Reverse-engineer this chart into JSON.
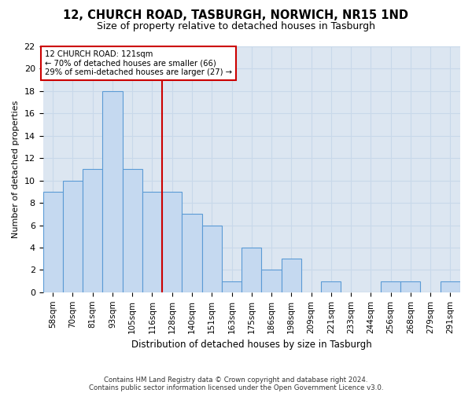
{
  "title1": "12, CHURCH ROAD, TASBURGH, NORWICH, NR15 1ND",
  "title2": "Size of property relative to detached houses in Tasburgh",
  "xlabel": "Distribution of detached houses by size in Tasburgh",
  "ylabel": "Number of detached properties",
  "footnote1": "Contains HM Land Registry data © Crown copyright and database right 2024.",
  "footnote2": "Contains public sector information licensed under the Open Government Licence v3.0.",
  "categories": [
    "58sqm",
    "70sqm",
    "81sqm",
    "93sqm",
    "105sqm",
    "116sqm",
    "128sqm",
    "140sqm",
    "151sqm",
    "163sqm",
    "175sqm",
    "186sqm",
    "198sqm",
    "209sqm",
    "221sqm",
    "233sqm",
    "244sqm",
    "256sqm",
    "268sqm",
    "279sqm",
    "291sqm"
  ],
  "values": [
    9,
    10,
    11,
    18,
    11,
    9,
    9,
    7,
    6,
    1,
    4,
    2,
    3,
    0,
    1,
    0,
    0,
    1,
    1,
    0,
    1
  ],
  "bar_color": "#c5d9f0",
  "bar_edge_color": "#5b9bd5",
  "grid_color": "#c8d8ea",
  "annotation_line_color": "#cc0000",
  "annotation_text_line1": "12 CHURCH ROAD: 121sqm",
  "annotation_text_line2": "← 70% of detached houses are smaller (66)",
  "annotation_text_line3": "29% of semi-detached houses are larger (27) →",
  "annotation_box_color": "#ffffff",
  "annotation_box_edge": "#cc0000",
  "ylim": [
    0,
    22
  ],
  "yticks": [
    0,
    2,
    4,
    6,
    8,
    10,
    12,
    14,
    16,
    18,
    20,
    22
  ],
  "bg_color": "#ffffff",
  "plot_bg_color": "#dce6f1",
  "red_line_x": 5.5
}
